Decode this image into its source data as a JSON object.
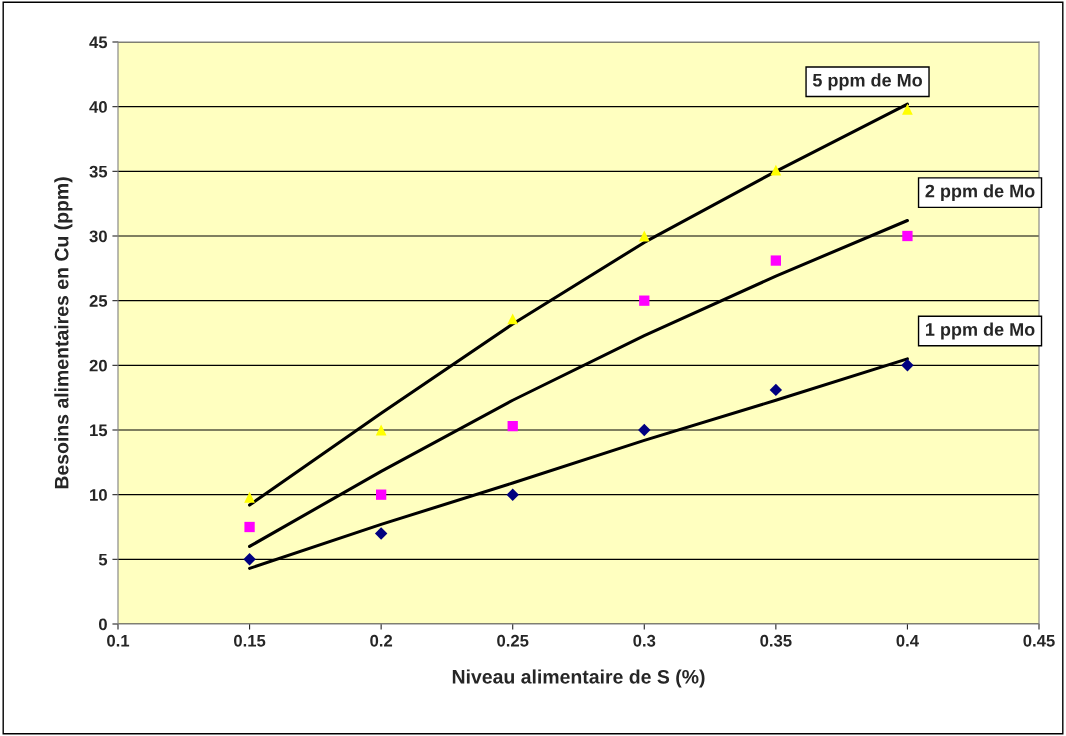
{
  "chart_data": {
    "type": "scatter",
    "xlabel": "Niveau alimentaire de S (%)",
    "ylabel": "Besoins alimentaires en Cu (ppm)",
    "xlim": [
      0.1,
      0.45
    ],
    "xticks": [
      0.1,
      0.15,
      0.2,
      0.25,
      0.3,
      0.35,
      0.4,
      0.45
    ],
    "ylim": [
      0,
      45
    ],
    "yticks": [
      0,
      5,
      10,
      15,
      20,
      25,
      30,
      35,
      40,
      45
    ],
    "grid": "y",
    "legend": false,
    "x": [
      0.15,
      0.2,
      0.25,
      0.3,
      0.35,
      0.4
    ],
    "series": [
      {
        "marker": "diamond",
        "color": "#000080",
        "values": [
          5,
          7,
          10,
          15,
          18.1,
          20
        ]
      },
      {
        "marker": "square",
        "color": "#ff00ff",
        "values": [
          7.5,
          10,
          15.3,
          25,
          28.1,
          30
        ]
      },
      {
        "marker": "triangle",
        "color": "#ffff00",
        "values": [
          9.8,
          15,
          23.6,
          30,
          35.1,
          39.8
        ]
      },
      {
        "type": "line",
        "name": "1 ppm de Mo",
        "marker": "none",
        "line_style": "solid",
        "color": "#000000",
        "values": [
          4.3,
          7.7,
          10.9,
          14.2,
          17.3,
          20.5
        ]
      },
      {
        "type": "line",
        "name": "2 ppm de Mo",
        "marker": "none",
        "line_style": "solid",
        "color": "#000000",
        "values": [
          6.0,
          11.8,
          17.3,
          22.3,
          26.9,
          31.2
        ]
      },
      {
        "type": "line",
        "name": "5 ppm de Mo",
        "marker": "none",
        "line_style": "solid",
        "color": "#000000",
        "values": [
          9.2,
          16.3,
          23.2,
          29.5,
          35.0,
          40.2
        ]
      }
    ]
  }
}
